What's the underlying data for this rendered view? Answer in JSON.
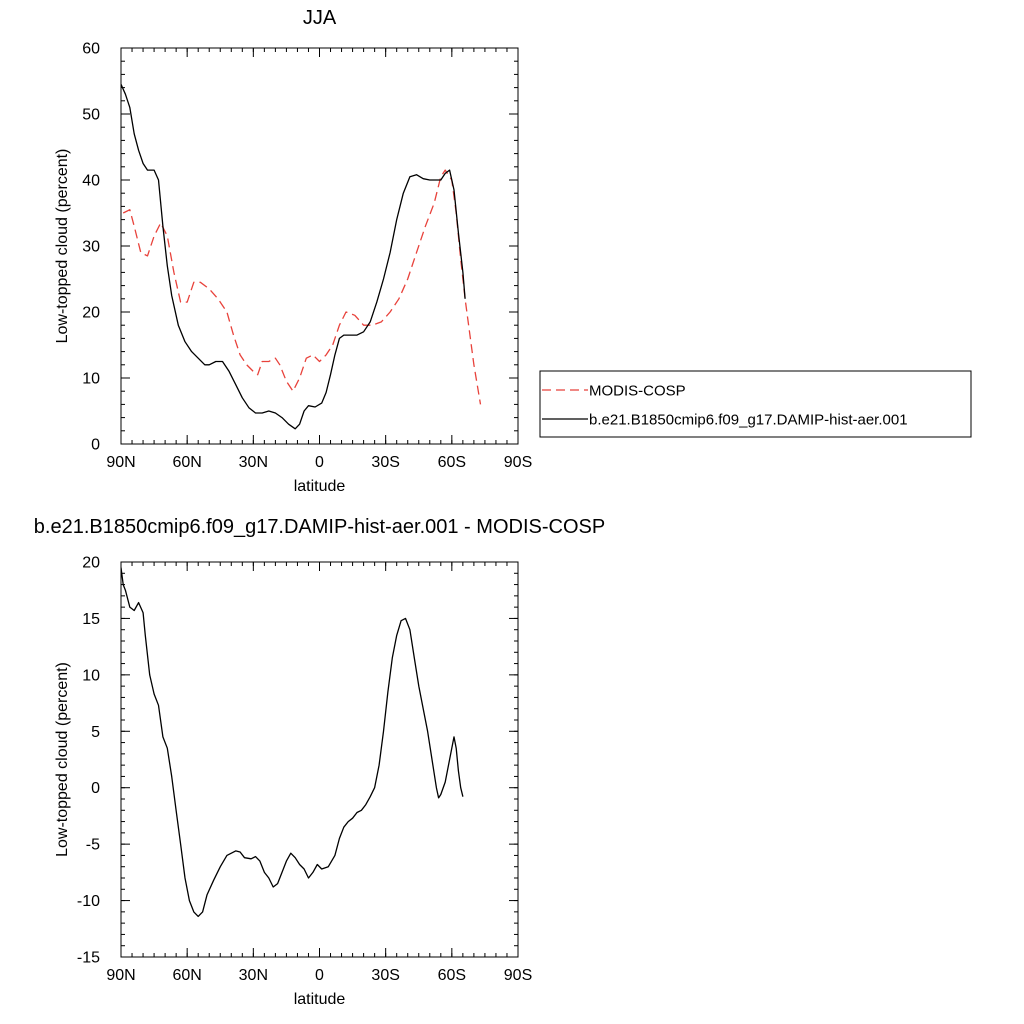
{
  "chart_data": [
    {
      "type": "line",
      "title": "JJA",
      "xlabel": "latitude",
      "ylabel": "Low-topped cloud (percent)",
      "xlim": [
        -90,
        90
      ],
      "ylim": [
        0,
        60
      ],
      "x_ticks": [
        -90,
        -60,
        -30,
        0,
        30,
        60,
        90
      ],
      "x_tick_labels": [
        "90N",
        "60N",
        "30N",
        "0",
        "30S",
        "60S",
        "90S"
      ],
      "y_ticks": [
        0,
        10,
        20,
        30,
        40,
        50,
        60
      ],
      "y_tick_labels": [
        "0",
        "10",
        "20",
        "30",
        "40",
        "50",
        "60"
      ],
      "legend_position": "right",
      "series": [
        {
          "name": "MODIS-COSP",
          "color": "#e8423b",
          "dash": "dashed",
          "points": [
            [
              -89,
              35
            ],
            [
              -86,
              35.5
            ],
            [
              -84,
              33
            ],
            [
              -81,
              29
            ],
            [
              -78,
              28.5
            ],
            [
              -75,
              31.5
            ],
            [
              -72,
              33.5
            ],
            [
              -69,
              31.5
            ],
            [
              -66,
              26
            ],
            [
              -63,
              21.5
            ],
            [
              -60,
              21.5
            ],
            [
              -57,
              24.5
            ],
            [
              -54,
              24.5
            ],
            [
              -50,
              23.5
            ],
            [
              -46,
              22
            ],
            [
              -42,
              20
            ],
            [
              -39,
              16.5
            ],
            [
              -36,
              13.5
            ],
            [
              -33,
              12
            ],
            [
              -30,
              11
            ],
            [
              -28,
              10.5
            ],
            [
              -26,
              12.5
            ],
            [
              -23,
              12.5
            ],
            [
              -20,
              13
            ],
            [
              -18,
              12
            ],
            [
              -15,
              9.5
            ],
            [
              -12,
              8
            ],
            [
              -9,
              10
            ],
            [
              -6,
              13
            ],
            [
              -3,
              13.5
            ],
            [
              0,
              12.5
            ],
            [
              3,
              13.5
            ],
            [
              6,
              15
            ],
            [
              9,
              18
            ],
            [
              12,
              20
            ],
            [
              16,
              19.5
            ],
            [
              20,
              18
            ],
            [
              24,
              18
            ],
            [
              28,
              18.5
            ],
            [
              32,
              20
            ],
            [
              36,
              22
            ],
            [
              40,
              25
            ],
            [
              44,
              29
            ],
            [
              48,
              33
            ],
            [
              52,
              36.5
            ],
            [
              55,
              40.5
            ],
            [
              57,
              41.5
            ],
            [
              60,
              40
            ],
            [
              62,
              35
            ],
            [
              64,
              28
            ],
            [
              66,
              22
            ],
            [
              68,
              17
            ],
            [
              70,
              12
            ],
            [
              73,
              6
            ]
          ]
        },
        {
          "name": "b.e21.B1850cmip6.f09_g17.DAMIP-hist-aer.001",
          "color": "#000000",
          "dash": "solid",
          "points": [
            [
              -90,
              54.5
            ],
            [
              -88,
              53
            ],
            [
              -86,
              51
            ],
            [
              -84,
              47
            ],
            [
              -82,
              44.5
            ],
            [
              -80,
              42.5
            ],
            [
              -78,
              41.5
            ],
            [
              -75,
              41.5
            ],
            [
              -73,
              40
            ],
            [
              -71,
              33
            ],
            [
              -69,
              27
            ],
            [
              -67,
              22.5
            ],
            [
              -64,
              18
            ],
            [
              -61,
              15.5
            ],
            [
              -58,
              14
            ],
            [
              -55,
              13
            ],
            [
              -52,
              12
            ],
            [
              -50,
              12
            ],
            [
              -47,
              12.5
            ],
            [
              -44,
              12.5
            ],
            [
              -41,
              11
            ],
            [
              -38,
              9
            ],
            [
              -35,
              7
            ],
            [
              -32,
              5.5
            ],
            [
              -29,
              4.7
            ],
            [
              -26,
              4.7
            ],
            [
              -23,
              5
            ],
            [
              -20,
              4.7
            ],
            [
              -17,
              4
            ],
            [
              -14,
              3
            ],
            [
              -11,
              2.3
            ],
            [
              -9,
              3
            ],
            [
              -7,
              5
            ],
            [
              -5,
              5.8
            ],
            [
              -2,
              5.6
            ],
            [
              1,
              6.2
            ],
            [
              3,
              7.8
            ],
            [
              5,
              10.5
            ],
            [
              7,
              13.5
            ],
            [
              9,
              16
            ],
            [
              11,
              16.5
            ],
            [
              14,
              16.5
            ],
            [
              17,
              16.5
            ],
            [
              20,
              17
            ],
            [
              23,
              18.5
            ],
            [
              26,
              21.5
            ],
            [
              29,
              25
            ],
            [
              32,
              29
            ],
            [
              35,
              34
            ],
            [
              38,
              38
            ],
            [
              41,
              40.5
            ],
            [
              44,
              40.8
            ],
            [
              47,
              40.2
            ],
            [
              50,
              40
            ],
            [
              53,
              40
            ],
            [
              55,
              40
            ],
            [
              57,
              41
            ],
            [
              59,
              41.5
            ],
            [
              61,
              38.5
            ],
            [
              63,
              32
            ],
            [
              65,
              26
            ],
            [
              66,
              22
            ]
          ]
        }
      ]
    },
    {
      "type": "line",
      "title": "b.e21.B1850cmip6.f09_g17.DAMIP-hist-aer.001 - MODIS-COSP",
      "xlabel": "latitude",
      "ylabel": "Low-topped cloud (percent)",
      "xlim": [
        -90,
        90
      ],
      "ylim": [
        -15,
        20
      ],
      "x_ticks": [
        -90,
        -60,
        -30,
        0,
        30,
        60,
        90
      ],
      "x_tick_labels": [
        "90N",
        "60N",
        "30N",
        "0",
        "30S",
        "60S",
        "90S"
      ],
      "y_ticks": [
        -15,
        -10,
        -5,
        0,
        5,
        10,
        15,
        20
      ],
      "y_tick_labels": [
        "-15",
        "-10",
        "-5",
        "0",
        "5",
        "10",
        "15",
        "20"
      ],
      "series": [
        {
          "color": "#000000",
          "dash": "solid",
          "points": [
            [
              -90,
              19.5
            ],
            [
              -89,
              18
            ],
            [
              -88,
              17.5
            ],
            [
              -86,
              16
            ],
            [
              -84,
              15.7
            ],
            [
              -82,
              16.4
            ],
            [
              -80,
              15.5
            ],
            [
              -79,
              13.5
            ],
            [
              -77,
              10
            ],
            [
              -75,
              8.3
            ],
            [
              -73,
              7.3
            ],
            [
              -71,
              4.5
            ],
            [
              -69,
              3.5
            ],
            [
              -67,
              1
            ],
            [
              -65,
              -2
            ],
            [
              -63,
              -5
            ],
            [
              -61,
              -8
            ],
            [
              -59,
              -10
            ],
            [
              -57,
              -11
            ],
            [
              -55,
              -11.4
            ],
            [
              -53,
              -11
            ],
            [
              -51,
              -9.5
            ],
            [
              -48,
              -8.2
            ],
            [
              -45,
              -7
            ],
            [
              -42,
              -6
            ],
            [
              -38,
              -5.6
            ],
            [
              -36,
              -5.7
            ],
            [
              -34,
              -6.2
            ],
            [
              -31,
              -6.3
            ],
            [
              -29,
              -6.1
            ],
            [
              -27,
              -6.5
            ],
            [
              -25,
              -7.5
            ],
            [
              -23,
              -8
            ],
            [
              -21,
              -8.8
            ],
            [
              -19,
              -8.5
            ],
            [
              -17,
              -7.5
            ],
            [
              -15,
              -6.5
            ],
            [
              -13,
              -5.8
            ],
            [
              -11,
              -6.2
            ],
            [
              -9,
              -6.8
            ],
            [
              -7,
              -7.2
            ],
            [
              -5,
              -8
            ],
            [
              -3,
              -7.5
            ],
            [
              -1,
              -6.8
            ],
            [
              1,
              -7.2
            ],
            [
              4,
              -7
            ],
            [
              7,
              -6
            ],
            [
              9,
              -4.5
            ],
            [
              11,
              -3.5
            ],
            [
              13,
              -3
            ],
            [
              15,
              -2.7
            ],
            [
              17,
              -2.2
            ],
            [
              19,
              -2
            ],
            [
              21,
              -1.5
            ],
            [
              23,
              -0.8
            ],
            [
              25,
              0
            ],
            [
              27,
              2
            ],
            [
              29,
              5
            ],
            [
              31,
              8.5
            ],
            [
              33,
              11.5
            ],
            [
              35,
              13.5
            ],
            [
              37,
              14.8
            ],
            [
              39,
              15
            ],
            [
              41,
              14
            ],
            [
              43,
              11.5
            ],
            [
              45,
              9
            ],
            [
              47,
              7
            ],
            [
              49,
              5
            ],
            [
              51,
              2.5
            ],
            [
              53,
              0
            ],
            [
              54,
              -0.9
            ],
            [
              55,
              -0.6
            ],
            [
              57,
              0.5
            ],
            [
              59,
              2.5
            ],
            [
              61,
              4.5
            ],
            [
              62,
              3.5
            ],
            [
              63,
              1.5
            ],
            [
              64,
              0
            ],
            [
              65,
              -0.8
            ]
          ]
        }
      ]
    }
  ]
}
